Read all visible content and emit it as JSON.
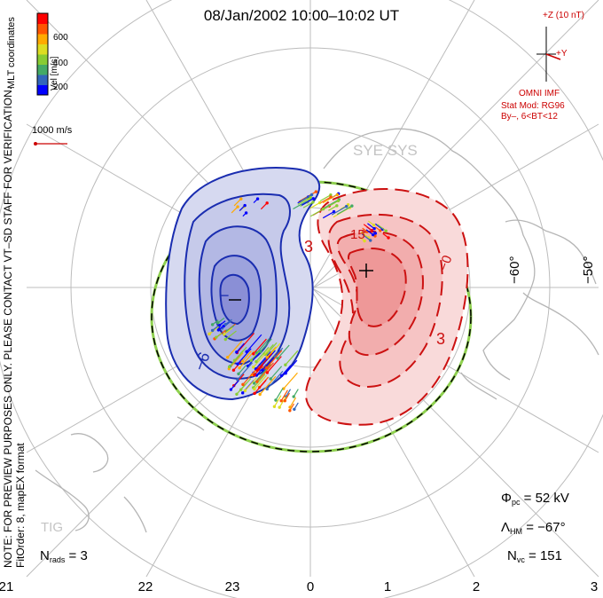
{
  "title": "08/Jan/2002 10:00–10:02 UT",
  "colorbar": {
    "label": "Vel [m/s]",
    "ticks": [
      "600",
      "400",
      "200"
    ],
    "colors": [
      "#0000ff",
      "#3366bb",
      "#44aa66",
      "#88cc33",
      "#dddd22",
      "#ffaa00",
      "#ff5500",
      "#ff0000"
    ]
  },
  "coords_label": "MLT coordinates",
  "scale": {
    "label": "1000 m/s"
  },
  "imf": {
    "z_label": "+Z (10 nT)",
    "y_label": "+Y",
    "source": "OMNI IMF",
    "model": "Stat Mod: RG96",
    "cond": "By–, 6<BT<12"
  },
  "station_labels": [
    "SYE SYS",
    "TIG"
  ],
  "note": "NOTE: FOR PREVIEW PURPOSES ONLY. PLEASE CONTACT VT–SD STAFF FOR VERIFICATION.",
  "fit_order": "FitOrder: 8, mapEX format",
  "nrads": {
    "label": "N",
    "sub": "rads",
    "value": " = 3"
  },
  "phi_pc": {
    "label": "Φ",
    "sub": "pc",
    "value": " = 52 kV"
  },
  "lambda_hm": {
    "label": "Λ",
    "sub": "HM",
    "value": " = −67°"
  },
  "nvc": {
    "label": "N",
    "sub": "vc",
    "value": " = 151"
  },
  "mlt_ticks": [
    "21",
    "22",
    "23",
    "0",
    "1",
    "2",
    "3"
  ],
  "lat_ticks": [
    "−60°",
    "−50°"
  ],
  "contour_labels": [
    "−6",
    "3",
    "15",
    "−0",
    "3",
    "−"
  ],
  "colors": {
    "negative": "#1a2db0",
    "positive": "#cc1111",
    "hmb": "#8fd14f",
    "grid": "#bbbbbb",
    "land": "#bbbbbb"
  }
}
